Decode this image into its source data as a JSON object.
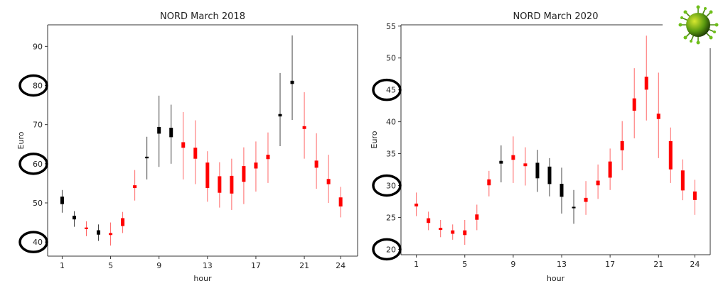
{
  "chart_data": [
    {
      "type": "candlestick",
      "title": "NORD March 2018",
      "xlabel": "hour",
      "ylabel": "Euro",
      "xlim": [
        -0.2,
        25.4
      ],
      "ylim": [
        36.4,
        95.5
      ],
      "xticks": [
        1,
        5,
        9,
        13,
        17,
        21,
        24
      ],
      "yticks": [
        40,
        50,
        60,
        70,
        80,
        90
      ],
      "circled_yticks": [
        40,
        60,
        80
      ],
      "grid": false,
      "colors": {
        "up": "#000000",
        "down": "#ff0000"
      },
      "candles": [
        {
          "hour": 1,
          "open": 49.8,
          "high": 53.3,
          "low": 47.5,
          "close": 51.5
        },
        {
          "hour": 2,
          "open": 45.9,
          "high": 47.9,
          "low": 43.9,
          "close": 46.6
        },
        {
          "hour": 3,
          "open": 43.6,
          "high": 45.3,
          "low": 41.5,
          "close": 43.4
        },
        {
          "hour": 4,
          "open": 42.0,
          "high": 44.5,
          "low": 40.3,
          "close": 42.9
        },
        {
          "hour": 5,
          "open": 42.2,
          "high": 45.0,
          "low": 39.1,
          "close": 41.9
        },
        {
          "hour": 6,
          "open": 46.0,
          "high": 47.7,
          "low": 42.3,
          "close": 44.2
        },
        {
          "hour": 7,
          "open": 54.4,
          "high": 58.4,
          "low": 50.6,
          "close": 53.9
        },
        {
          "hour": 8,
          "open": 61.5,
          "high": 66.9,
          "low": 56.0,
          "close": 61.7
        },
        {
          "hour": 9,
          "open": 67.8,
          "high": 77.4,
          "low": 59.2,
          "close": 69.3
        },
        {
          "hour": 10,
          "open": 66.9,
          "high": 75.1,
          "low": 60.0,
          "close": 69.1
        },
        {
          "hour": 11,
          "open": 65.4,
          "high": 73.2,
          "low": 56.0,
          "close": 64.2
        },
        {
          "hour": 12,
          "open": 64.0,
          "high": 71.1,
          "low": 54.8,
          "close": 61.4
        },
        {
          "hour": 13,
          "open": 60.2,
          "high": 63.2,
          "low": 50.3,
          "close": 53.9
        },
        {
          "hour": 14,
          "open": 56.7,
          "high": 60.4,
          "low": 48.8,
          "close": 52.7
        },
        {
          "hour": 15,
          "open": 56.8,
          "high": 61.3,
          "low": 48.2,
          "close": 52.5
        },
        {
          "hour": 16,
          "open": 59.3,
          "high": 64.2,
          "low": 49.7,
          "close": 55.5
        },
        {
          "hour": 17,
          "open": 60.2,
          "high": 65.7,
          "low": 52.9,
          "close": 58.9
        },
        {
          "hour": 18,
          "open": 62.2,
          "high": 68.0,
          "low": 55.1,
          "close": 61.3
        },
        {
          "hour": 19,
          "open": 72.2,
          "high": 83.2,
          "low": 64.5,
          "close": 72.6
        },
        {
          "hour": 20,
          "open": 80.5,
          "high": 92.8,
          "low": 71.2,
          "close": 81.1
        },
        {
          "hour": 21,
          "open": 69.5,
          "high": 78.3,
          "low": 61.3,
          "close": 69.0
        },
        {
          "hour": 22,
          "open": 60.7,
          "high": 67.8,
          "low": 53.6,
          "close": 59.1
        },
        {
          "hour": 23,
          "open": 56.0,
          "high": 62.3,
          "low": 50.0,
          "close": 54.9
        },
        {
          "hour": 24,
          "open": 51.3,
          "high": 54.1,
          "low": 46.3,
          "close": 49.2
        }
      ]
    },
    {
      "type": "candlestick",
      "title": "NORD March 2020",
      "xlabel": "hour",
      "ylabel": "Euro",
      "xlim": [
        -0.27,
        25.27
      ],
      "ylim": [
        19.15,
        55.2
      ],
      "xticks": [
        1,
        5,
        9,
        13,
        17,
        21,
        24
      ],
      "yticks": [
        20,
        25,
        30,
        35,
        40,
        45,
        50,
        55
      ],
      "circled_yticks": [
        20,
        30,
        45
      ],
      "grid": false,
      "colors": {
        "up": "#000000",
        "down": "#ff0000"
      },
      "candles": [
        {
          "hour": 1,
          "open": 27.1,
          "high": 28.9,
          "low": 25.2,
          "close": 26.8
        },
        {
          "hour": 2,
          "open": 24.8,
          "high": 25.9,
          "low": 23.0,
          "close": 24.2
        },
        {
          "hour": 3,
          "open": 23.3,
          "high": 24.6,
          "low": 21.9,
          "close": 23.1
        },
        {
          "hour": 4,
          "open": 22.9,
          "high": 23.9,
          "low": 21.5,
          "close": 22.5
        },
        {
          "hour": 5,
          "open": 22.9,
          "high": 24.6,
          "low": 20.7,
          "close": 22.3
        },
        {
          "hour": 6,
          "open": 25.4,
          "high": 27.0,
          "low": 23.0,
          "close": 24.7
        },
        {
          "hour": 7,
          "open": 30.9,
          "high": 32.3,
          "low": 28.3,
          "close": 30.1
        },
        {
          "hour": 8,
          "open": 33.5,
          "high": 36.3,
          "low": 30.5,
          "close": 33.8
        },
        {
          "hour": 9,
          "open": 34.7,
          "high": 37.7,
          "low": 30.4,
          "close": 34.1
        },
        {
          "hour": 10,
          "open": 33.4,
          "high": 36.0,
          "low": 30.0,
          "close": 33.1
        },
        {
          "hour": 11,
          "open": 31.2,
          "high": 35.6,
          "low": 29.0,
          "close": 33.5
        },
        {
          "hour": 12,
          "open": 30.3,
          "high": 34.3,
          "low": 28.3,
          "close": 32.9
        },
        {
          "hour": 13,
          "open": 28.3,
          "high": 32.8,
          "low": 25.6,
          "close": 30.2
        },
        {
          "hour": 14,
          "open": 26.5,
          "high": 29.3,
          "low": 24.0,
          "close": 26.6
        },
        {
          "hour": 15,
          "open": 28.0,
          "high": 30.7,
          "low": 25.4,
          "close": 27.5
        },
        {
          "hour": 16,
          "open": 30.7,
          "high": 33.3,
          "low": 27.9,
          "close": 30.1
        },
        {
          "hour": 17,
          "open": 33.7,
          "high": 35.8,
          "low": 29.3,
          "close": 31.3
        },
        {
          "hour": 18,
          "open": 36.9,
          "high": 40.1,
          "low": 32.4,
          "close": 35.6
        },
        {
          "hour": 19,
          "open": 43.6,
          "high": 48.4,
          "low": 37.4,
          "close": 41.8
        },
        {
          "hour": 20,
          "open": 47.0,
          "high": 53.5,
          "low": 40.2,
          "close": 45.1
        },
        {
          "hour": 21,
          "open": 41.2,
          "high": 47.7,
          "low": 34.3,
          "close": 40.5
        },
        {
          "hour": 22,
          "open": 36.9,
          "high": 39.1,
          "low": 30.4,
          "close": 32.6
        },
        {
          "hour": 23,
          "open": 32.3,
          "high": 34.1,
          "low": 27.7,
          "close": 29.3
        },
        {
          "hour": 24,
          "open": 29.0,
          "high": 30.9,
          "low": 25.4,
          "close": 27.8
        }
      ]
    }
  ],
  "decoration": {
    "icon": "coronavirus-icon"
  }
}
